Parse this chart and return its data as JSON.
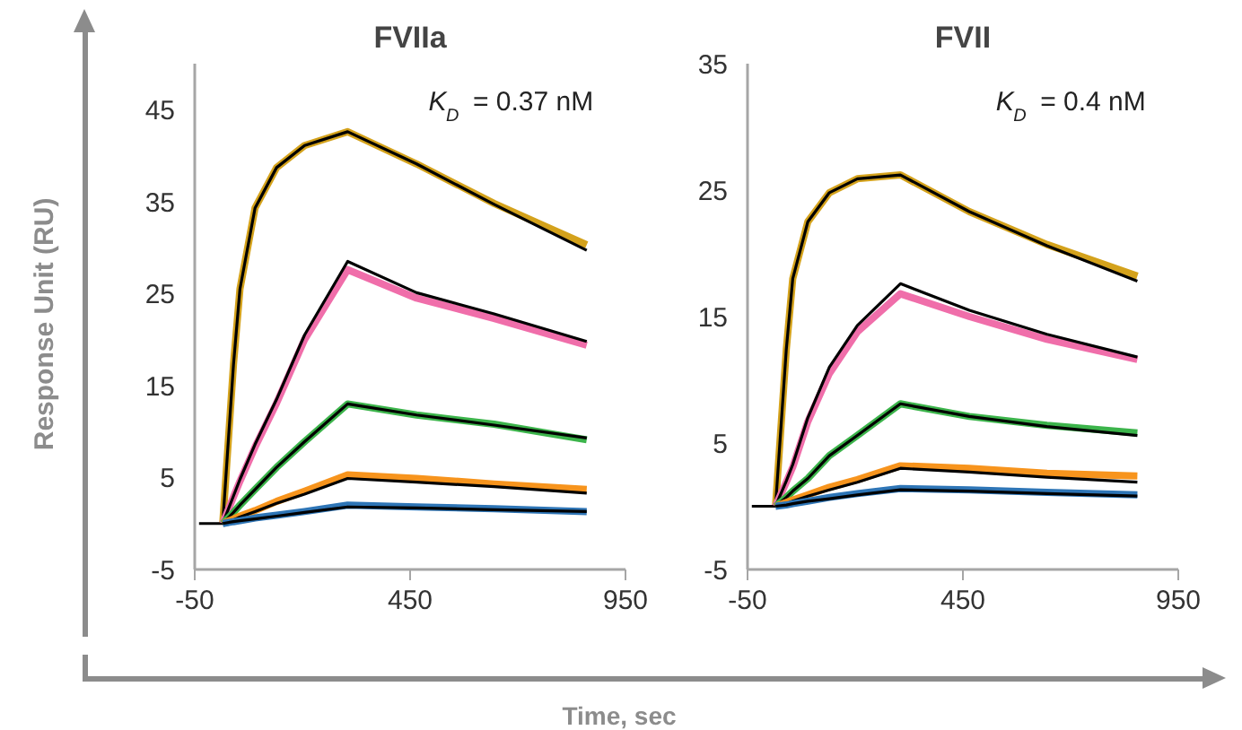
{
  "chart_data": [
    {
      "type": "line",
      "title": "FVIIa",
      "xlabel": "Time, sec",
      "ylabel": "Response Unit (RU)",
      "xlim": [
        -50,
        950
      ],
      "ylim": [
        -5,
        50
      ],
      "xticks": [
        -50,
        450,
        950
      ],
      "yticks": [
        -5,
        5,
        15,
        25,
        35,
        45
      ],
      "grid": false,
      "annotations": [
        "K$_{D}$ = 0.37 nM"
      ],
      "x": [
        -40,
        15,
        40,
        55,
        90,
        140,
        205,
        305,
        465,
        645,
        860
      ],
      "series": [
        {
          "color": "#d4a21c",
          "values": [
            null,
            0,
            17.3,
            25.5,
            34.3,
            38.7,
            41.1,
            42.6,
            39.1,
            34.8,
            30.3
          ]
        },
        {
          "color": "#000000",
          "values": [
            0,
            0,
            17.3,
            25.5,
            34.3,
            38.7,
            41.1,
            42.6,
            39.1,
            34.7,
            29.7
          ]
        },
        {
          "color": "#f06eaa",
          "values": [
            null,
            0,
            2.9,
            4.6,
            8.3,
            13.1,
            20.0,
            27.6,
            24.5,
            22.3,
            19.4
          ]
        },
        {
          "color": "#000000",
          "values": [
            null,
            0,
            3.0,
            4.8,
            8.6,
            13.5,
            20.5,
            28.5,
            25.1,
            22.8,
            19.8
          ]
        },
        {
          "color": "#3cb44b",
          "values": [
            null,
            0,
            1.2,
            2.0,
            3.7,
            6.1,
            8.9,
            13.0,
            11.8,
            10.8,
            9.1
          ]
        },
        {
          "color": "#000000",
          "values": [
            null,
            0,
            1.2,
            2.0,
            3.7,
            6.1,
            8.9,
            13.0,
            11.8,
            10.7,
            9.3
          ]
        },
        {
          "color": "#f7941d",
          "values": [
            null,
            0,
            0.5,
            0.8,
            1.4,
            2.4,
            3.5,
            5.3,
            4.9,
            4.3,
            3.7
          ]
        },
        {
          "color": "#000000",
          "values": [
            null,
            0,
            0.4,
            0.7,
            1.3,
            2.2,
            3.2,
            4.9,
            4.5,
            4.0,
            3.3
          ]
        },
        {
          "color": "#2e75b6",
          "values": [
            null,
            0,
            0.2,
            0.3,
            0.6,
            0.9,
            1.3,
            2.0,
            1.8,
            1.6,
            1.3
          ]
        },
        {
          "color": "#000000",
          "values": [
            null,
            0,
            0.2,
            0.3,
            0.5,
            0.8,
            1.2,
            1.8,
            1.7,
            1.5,
            1.3
          ]
        }
      ]
    },
    {
      "type": "line",
      "title": "FVII",
      "xlim": [
        -50,
        950
      ],
      "ylim": [
        -5,
        35
      ],
      "xticks": [
        -50,
        450,
        950
      ],
      "yticks": [
        -5,
        5,
        15,
        25,
        35
      ],
      "grid": false,
      "annotations": [
        "K$_{D}$ = 0.4 nM"
      ],
      "x": [
        -40,
        15,
        40,
        55,
        90,
        140,
        205,
        305,
        465,
        645,
        855
      ],
      "series": [
        {
          "color": "#d4a21c",
          "values": [
            null,
            0,
            12.4,
            18.0,
            22.5,
            24.8,
            25.9,
            26.2,
            23.3,
            20.7,
            18.2
          ]
        },
        {
          "color": "#000000",
          "values": [
            0,
            0,
            12.4,
            18.0,
            22.5,
            24.8,
            25.9,
            26.2,
            23.3,
            20.6,
            17.8
          ]
        },
        {
          "color": "#f06eaa",
          "values": [
            null,
            0,
            1.9,
            3.1,
            6.7,
            10.5,
            13.8,
            16.8,
            15.0,
            13.2,
            11.6
          ]
        },
        {
          "color": "#000000",
          "values": [
            null,
            0,
            2.0,
            3.3,
            7.0,
            11.0,
            14.3,
            17.6,
            15.5,
            13.6,
            11.8
          ]
        },
        {
          "color": "#3cb44b",
          "values": [
            null,
            0,
            0.7,
            1.2,
            2.2,
            4.0,
            5.6,
            8.1,
            7.1,
            6.4,
            5.8
          ]
        },
        {
          "color": "#000000",
          "values": [
            null,
            0,
            0.7,
            1.2,
            2.2,
            4.0,
            5.6,
            8.1,
            7.1,
            6.3,
            5.6
          ]
        },
        {
          "color": "#f7941d",
          "values": [
            null,
            0,
            0.3,
            0.5,
            0.9,
            1.5,
            2.1,
            3.2,
            3.0,
            2.6,
            2.4
          ]
        },
        {
          "color": "#000000",
          "values": [
            null,
            0,
            0.2,
            0.4,
            0.8,
            1.3,
            1.9,
            3.0,
            2.7,
            2.3,
            1.9
          ]
        },
        {
          "color": "#2e75b6",
          "values": [
            null,
            0,
            0.1,
            0.2,
            0.4,
            0.7,
            1.0,
            1.4,
            1.3,
            1.1,
            0.9
          ]
        },
        {
          "color": "#000000",
          "values": [
            null,
            0,
            0.1,
            0.2,
            0.4,
            0.6,
            0.9,
            1.3,
            1.2,
            1.0,
            0.8
          ]
        }
      ]
    }
  ]
}
